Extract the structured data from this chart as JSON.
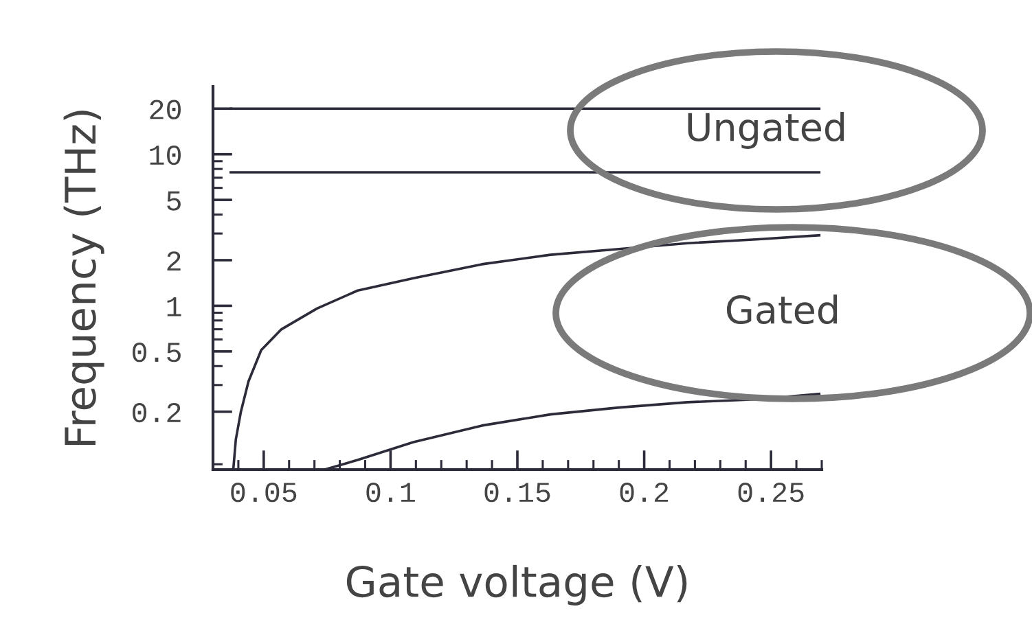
{
  "chart_data": {
    "type": "line",
    "xlabel": "Gate voltage (V)",
    "ylabel": "Frequency (THz)",
    "series": [
      {
        "x": [
          0.037,
          0.269
        ],
        "values": [
          20,
          20
        ],
        "color": "#2b2b3a"
      },
      {
        "x": [
          0.037,
          0.269
        ],
        "values": [
          7.6,
          7.6
        ],
        "color": "#2b2b3a"
      },
      {
        "x": [
          0.038,
          0.039,
          0.041,
          0.044,
          0.049,
          0.057,
          0.071,
          0.087,
          0.109,
          0.136,
          0.163,
          0.19,
          0.217,
          0.244,
          0.269
        ],
        "values": [
          0.083,
          0.131,
          0.2,
          0.317,
          0.51,
          0.7,
          0.96,
          1.26,
          1.52,
          1.88,
          2.17,
          2.37,
          2.59,
          2.74,
          2.92
        ],
        "color": "#2b2b3a"
      },
      {
        "x": [
          0.074,
          0.087,
          0.109,
          0.136,
          0.163,
          0.19,
          0.217,
          0.244,
          0.269
        ],
        "values": [
          0.083,
          0.096,
          0.126,
          0.162,
          0.192,
          0.213,
          0.231,
          0.241,
          0.262
        ],
        "color": "#2b2b3a"
      }
    ],
    "log": "y",
    "xlim": [
      0.03,
      0.27
    ],
    "xticks": [
      0.05,
      0.1,
      0.15,
      0.2,
      0.25
    ],
    "ylim": [
      0.083,
      28
    ],
    "yticks": [
      0.2,
      0.5,
      1,
      2,
      5,
      10,
      20
    ],
    "annotations": [
      "Ungated",
      "Gated"
    ],
    "grid": false,
    "legend": false
  }
}
